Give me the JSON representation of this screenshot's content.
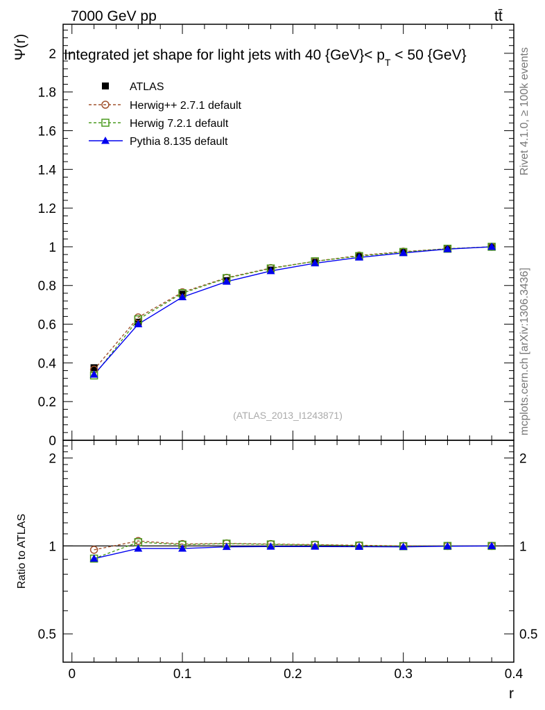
{
  "header": {
    "energy_label": "7000 GeV pp",
    "process_label": "tt̄"
  },
  "side_labels": {
    "rivet": "Rivet 4.1.0, ≥ 100k events",
    "source": "mcplots.cern.ch [arXiv:1306.3436]"
  },
  "analysis_id": "(ATLAS_2013_I1243871)",
  "colors": {
    "atlas": "#000000",
    "herwigpp": "#a0522d",
    "herwig7": "#4a9a1e",
    "pythia": "#0000ee"
  },
  "chart_data": [
    {
      "panel": "main",
      "type": "line",
      "title": "Integrated jet shape for light jets with 40 {GeV}< p",
      "title_sub": "T",
      "title_tail": " < 50 {GeV}",
      "ylabel": "Ψ(r)",
      "xlabel": "",
      "xlim": [
        -0.008,
        0.4
      ],
      "ylim": [
        0,
        2.15
      ],
      "yticks": [
        0,
        0.2,
        0.4,
        0.6,
        0.8,
        1,
        1.2,
        1.4,
        1.6,
        1.8,
        2
      ],
      "ytick_labels": [
        "0",
        "0.2",
        "0.4",
        "0.6",
        "0.8",
        "1",
        "1.2",
        "1.4",
        "1.6",
        "1.8",
        "2"
      ],
      "x": [
        0.02,
        0.06,
        0.1,
        0.14,
        0.18,
        0.22,
        0.26,
        0.3,
        0.34,
        0.38
      ],
      "series": [
        {
          "name": "ATLAS",
          "key": "atlas",
          "values": [
            0.375,
            0.61,
            0.755,
            0.825,
            0.88,
            0.92,
            0.95,
            0.975,
            0.99,
            1.0
          ]
        },
        {
          "name": "Herwig++ 2.7.1 default",
          "key": "herwigpp",
          "values": [
            0.365,
            0.635,
            0.765,
            0.84,
            0.89,
            0.925,
            0.955,
            0.975,
            0.99,
            1.0
          ]
        },
        {
          "name": "Herwig 7.2.1 default",
          "key": "herwig7",
          "values": [
            0.335,
            0.625,
            0.76,
            0.838,
            0.888,
            0.925,
            0.952,
            0.973,
            0.99,
            1.0
          ]
        },
        {
          "name": "Pythia 8.135 default",
          "key": "pythia",
          "values": [
            0.34,
            0.6,
            0.74,
            0.82,
            0.875,
            0.915,
            0.945,
            0.968,
            0.988,
            1.0
          ]
        }
      ],
      "legend_position": "top-left"
    },
    {
      "panel": "ratio",
      "type": "line",
      "ylabel": "Ratio to ATLAS",
      "xlabel": "r",
      "xlim": [
        -0.008,
        0.4
      ],
      "ylim": [
        0.4,
        2.3
      ],
      "y_scale": "log",
      "yticks": [
        0.5,
        1,
        2
      ],
      "ytick_labels": [
        "0.5",
        "1",
        "2"
      ],
      "xticks": [
        0,
        0.1,
        0.2,
        0.3,
        0.4
      ],
      "xtick_labels": [
        "0",
        "0.1",
        "0.2",
        "0.3",
        "0.4"
      ],
      "x": [
        0.02,
        0.06,
        0.1,
        0.14,
        0.18,
        0.22,
        0.26,
        0.3,
        0.34,
        0.38
      ],
      "series": [
        {
          "name": "Herwig++ 2.7.1 default",
          "key": "herwigpp",
          "values": [
            0.97,
            1.04,
            1.015,
            1.02,
            1.015,
            1.01,
            1.005,
            1.0,
            1.0,
            1.0
          ]
        },
        {
          "name": "Herwig 7.2.1 default",
          "key": "herwig7",
          "values": [
            0.905,
            1.03,
            1.01,
            1.018,
            1.012,
            1.008,
            1.002,
            0.998,
            1.0,
            1.0
          ]
        },
        {
          "name": "Pythia 8.135 default",
          "key": "pythia",
          "values": [
            0.905,
            0.98,
            0.98,
            0.993,
            0.995,
            0.995,
            0.994,
            0.993,
            0.998,
            1.0
          ]
        }
      ]
    }
  ]
}
